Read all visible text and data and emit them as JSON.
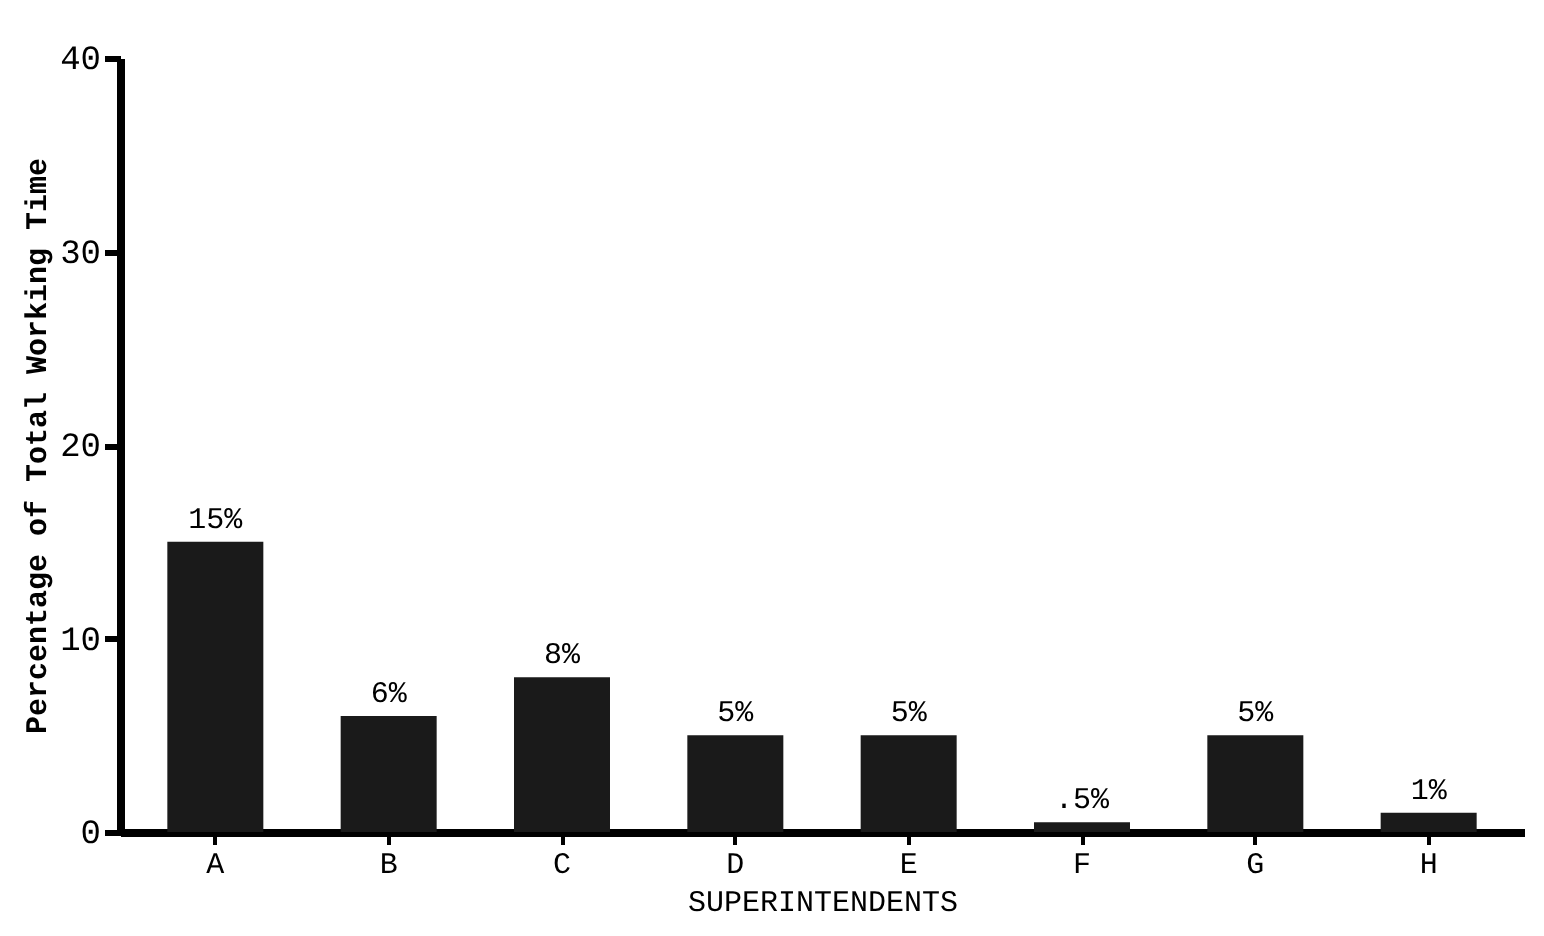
{
  "chart_data": {
    "type": "bar",
    "xlabel": "SUPERINTENDENTS",
    "ylabel": "Percentage of Total Working Time",
    "categories": [
      "A",
      "B",
      "C",
      "D",
      "E",
      "F",
      "G",
      "H"
    ],
    "values": [
      15,
      6,
      8,
      5,
      5,
      0.5,
      5,
      1
    ],
    "value_labels": [
      "15%",
      "6%",
      "8%",
      "5%",
      "5%",
      ".5%",
      "5%",
      "1%"
    ],
    "color": "#1a1a1a",
    "ylim": [
      0,
      40
    ],
    "yticks": [
      0,
      10,
      20,
      30,
      40
    ],
    "grid": false
  }
}
